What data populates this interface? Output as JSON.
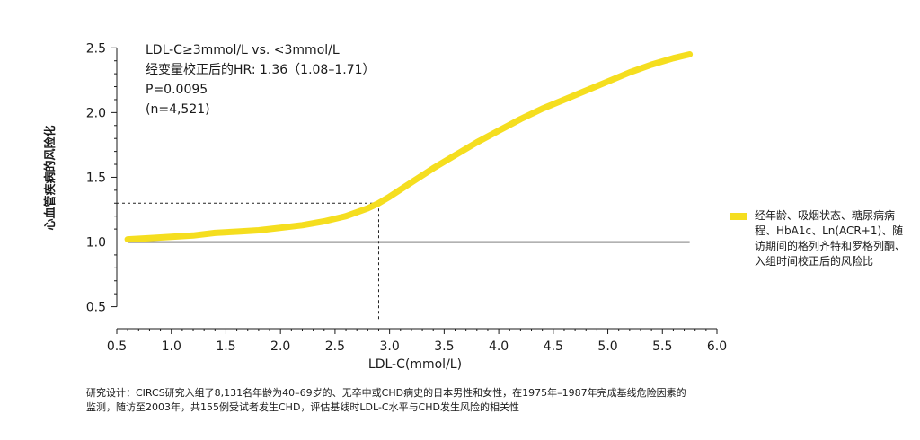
{
  "chart_data": {
    "type": "line",
    "xlabel": "LDL-C(mmol/L)",
    "ylabel": "心血管疾病的风险化",
    "xlim": [
      0.5,
      6.0
    ],
    "ylim": [
      0.4,
      2.62
    ],
    "x_ticks": [
      "0.5",
      "1.0",
      "1.5",
      "2.0",
      "2.5",
      "3.0",
      "3.5",
      "4.0",
      "4.5",
      "5.0",
      "5.5",
      "6.0"
    ],
    "y_ticks": [
      "0.5",
      "1.0",
      "1.5",
      "2.0",
      "2.5"
    ],
    "annotation": {
      "lines": [
        "LDL-C≥3mmol/L vs. <3mmol/L",
        "经变量校正后的HR: 1.36（1.08–1.71）",
        "P=0.0095",
        "(n=4,521)"
      ]
    },
    "reference_line": {
      "x": [
        0.6,
        5.75
      ],
      "y": [
        1.0,
        1.0
      ],
      "color": "#333333"
    },
    "marker_guides": {
      "x": 2.9,
      "y": 1.3
    },
    "series": [
      {
        "name": "经年龄、吸烟状态、糖尿病病程、HbA1c、Ln(ACR+1)、随访期间的格列齐特和罗格列酮、入组时间校正后的风险比",
        "color": "#F5DE1F",
        "x": [
          0.6,
          0.8,
          1.0,
          1.2,
          1.4,
          1.6,
          1.8,
          2.0,
          2.2,
          2.4,
          2.6,
          2.8,
          2.9,
          3.0,
          3.2,
          3.4,
          3.6,
          3.8,
          4.0,
          4.2,
          4.4,
          4.6,
          4.8,
          5.0,
          5.2,
          5.4,
          5.6,
          5.75
        ],
        "y": [
          1.02,
          1.03,
          1.04,
          1.05,
          1.07,
          1.08,
          1.09,
          1.11,
          1.13,
          1.16,
          1.2,
          1.26,
          1.3,
          1.35,
          1.46,
          1.57,
          1.67,
          1.77,
          1.86,
          1.95,
          2.03,
          2.1,
          2.17,
          2.24,
          2.31,
          2.37,
          2.42,
          2.45
        ]
      }
    ]
  },
  "legend": {
    "label": "经年龄、吸烟状态、糖尿病病程、HbA1c、Ln(ACR+1)、随访期间的格列齐特和罗格列酮、入组时间校正后的风险比"
  },
  "footnote": {
    "line1": "研究设计：CIRCS研究入组了8,131名年龄为40–69岁的、无卒中或CHD病史的日本男性和女性，在1975年–1987年完成基线危险因素的",
    "line2": "监测，随访至2003年，共155例受试者发生CHD，评估基线时LDL-C水平与CHD发生风险的相关性"
  }
}
